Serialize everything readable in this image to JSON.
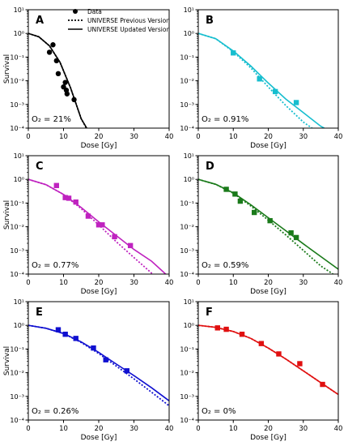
{
  "figure": {
    "legend": {
      "entries": [
        {
          "label": "Data",
          "style": "marker"
        },
        {
          "label": "UNIVERSE Previous Version",
          "style": "dotted"
        },
        {
          "label": "UNIVERSE Updated Version",
          "style": "solid"
        }
      ]
    }
  },
  "chart_data": [
    {
      "type": "scatter",
      "panel_letter": "A",
      "annotation": "O₂ = 21%",
      "color": "#000000",
      "marker": "circle",
      "xlabel": "Dose [Gy]",
      "ylabel": "Survival",
      "xlim": [
        0,
        40
      ],
      "ylim": [
        0.0001,
        10
      ],
      "yscale": "log",
      "x_ticks": [
        "0",
        "10",
        "20",
        "30",
        "40"
      ],
      "y_ticks": [
        "10⁻⁴",
        "10⁻³",
        "10⁻²",
        "10⁻¹",
        "10⁰",
        "10¹"
      ],
      "series": [
        {
          "name": "Data",
          "points": [
            [
              6.0,
              0.16
            ],
            [
              7.0,
              0.33
            ],
            [
              8.0,
              0.07
            ],
            [
              8.5,
              0.02
            ],
            [
              10.0,
              0.0055
            ],
            [
              10.5,
              0.0085
            ],
            [
              10.8,
              0.004
            ],
            [
              11.0,
              0.0028
            ],
            [
              13.0,
              0.0016
            ]
          ]
        },
        {
          "name": "UNIVERSE Previous Version",
          "points": [
            [
              0,
              1.0
            ],
            [
              3,
              0.72
            ],
            [
              6,
              0.3
            ],
            [
              9,
              0.06
            ],
            [
              12,
              0.005
            ],
            [
              15,
              0.00025
            ],
            [
              16.5,
              0.0001
            ]
          ]
        },
        {
          "name": "UNIVERSE Updated Version",
          "points": [
            [
              0,
              1.0
            ],
            [
              3,
              0.72
            ],
            [
              6,
              0.3
            ],
            [
              9,
              0.06
            ],
            [
              12,
              0.005
            ],
            [
              15,
              0.00025
            ],
            [
              16.6,
              0.0001
            ]
          ]
        }
      ]
    },
    {
      "type": "scatter",
      "panel_letter": "B",
      "annotation": "O₂ = 0.91%",
      "color": "#17becf",
      "marker": "square",
      "xlabel": "Dose [Gy]",
      "ylabel": "",
      "xlim": [
        0,
        40
      ],
      "ylim": [
        0.0001,
        10
      ],
      "yscale": "log",
      "x_ticks": [
        "0",
        "10",
        "20",
        "30",
        "40"
      ],
      "y_ticks": [
        "10⁻⁴",
        "10⁻³",
        "10⁻²",
        "10⁻¹",
        "10⁰",
        "10¹"
      ],
      "series": [
        {
          "name": "Data",
          "points": [
            [
              10.0,
              0.15
            ],
            [
              17.5,
              0.012
            ],
            [
              22.0,
              0.0035
            ],
            [
              28.0,
              0.0012
            ]
          ]
        },
        {
          "name": "UNIVERSE Previous Version",
          "points": [
            [
              0,
              1.0
            ],
            [
              5,
              0.6
            ],
            [
              10,
              0.17
            ],
            [
              15,
              0.035
            ],
            [
              20,
              0.0055
            ],
            [
              25,
              0.0009
            ],
            [
              30,
              0.00018
            ],
            [
              32.5,
              0.0001
            ]
          ]
        },
        {
          "name": "UNIVERSE Updated Version",
          "points": [
            [
              0,
              1.0
            ],
            [
              5,
              0.6
            ],
            [
              10,
              0.18
            ],
            [
              15,
              0.042
            ],
            [
              20,
              0.008
            ],
            [
              25,
              0.0017
            ],
            [
              30,
              0.00045
            ],
            [
              35,
              0.00012
            ],
            [
              36,
              0.0001
            ]
          ]
        }
      ]
    },
    {
      "type": "scatter",
      "panel_letter": "C",
      "annotation": "O₂ = 0.77%",
      "color": "#bf22bf",
      "marker": "square",
      "xlabel": "Dose [Gy]",
      "ylabel": "Survival",
      "xlim": [
        0,
        40
      ],
      "ylim": [
        0.0001,
        10
      ],
      "yscale": "log",
      "x_ticks": [
        "0",
        "10",
        "20",
        "30",
        "40"
      ],
      "y_ticks": [
        "10⁻⁴",
        "10⁻³",
        "10⁻²",
        "10⁻¹",
        "10⁰",
        "10¹"
      ],
      "series": [
        {
          "name": "Data",
          "points": [
            [
              8.0,
              0.55
            ],
            [
              10.5,
              0.17
            ],
            [
              11.5,
              0.16
            ],
            [
              13.5,
              0.11
            ],
            [
              17.0,
              0.028
            ],
            [
              20.0,
              0.012
            ],
            [
              21.0,
              0.012
            ],
            [
              24.5,
              0.0038
            ],
            [
              29.0,
              0.0016
            ]
          ]
        },
        {
          "name": "UNIVERSE Previous Version",
          "points": [
            [
              0,
              1.0
            ],
            [
              5,
              0.6
            ],
            [
              10,
              0.23
            ],
            [
              15,
              0.058
            ],
            [
              20,
              0.012
            ],
            [
              25,
              0.0023
            ],
            [
              30,
              0.0005
            ],
            [
              35,
              0.00011
            ],
            [
              35.5,
              0.0001
            ]
          ]
        },
        {
          "name": "UNIVERSE Updated Version",
          "points": [
            [
              0,
              1.0
            ],
            [
              5,
              0.6
            ],
            [
              10,
              0.23
            ],
            [
              15,
              0.065
            ],
            [
              20,
              0.016
            ],
            [
              25,
              0.0042
            ],
            [
              30,
              0.0011
            ],
            [
              35,
              0.00035
            ],
            [
              39,
              0.0001
            ]
          ]
        }
      ]
    },
    {
      "type": "scatter",
      "panel_letter": "D",
      "annotation": "O₂ = 0.59%",
      "color": "#1a7a1a",
      "marker": "square",
      "xlabel": "Dose [Gy]",
      "ylabel": "",
      "xlim": [
        0,
        40
      ],
      "ylim": [
        0.0001,
        10
      ],
      "yscale": "log",
      "x_ticks": [
        "0",
        "10",
        "20",
        "30",
        "40"
      ],
      "y_ticks": [
        "10⁻⁴",
        "10⁻³",
        "10⁻²",
        "10⁻¹",
        "10⁰",
        "10¹"
      ],
      "series": [
        {
          "name": "Data",
          "points": [
            [
              8.0,
              0.38
            ],
            [
              10.5,
              0.24
            ],
            [
              12.0,
              0.12
            ],
            [
              16.0,
              0.04
            ],
            [
              20.5,
              0.018
            ],
            [
              26.5,
              0.0055
            ],
            [
              28.0,
              0.0035
            ]
          ]
        },
        {
          "name": "UNIVERSE Previous Version",
          "points": [
            [
              0,
              1.0
            ],
            [
              5,
              0.62
            ],
            [
              10,
              0.26
            ],
            [
              15,
              0.075
            ],
            [
              20,
              0.019
            ],
            [
              25,
              0.0045
            ],
            [
              30,
              0.001
            ],
            [
              35,
              0.00022
            ],
            [
              38.5,
              0.0001
            ]
          ]
        },
        {
          "name": "UNIVERSE Updated Version",
          "points": [
            [
              0,
              1.0
            ],
            [
              5,
              0.62
            ],
            [
              10,
              0.27
            ],
            [
              15,
              0.085
            ],
            [
              20,
              0.024
            ],
            [
              25,
              0.0068
            ],
            [
              30,
              0.0019
            ],
            [
              35,
              0.00055
            ],
            [
              40,
              0.00016
            ]
          ]
        }
      ]
    },
    {
      "type": "scatter",
      "panel_letter": "E",
      "annotation": "O₂ = 0.26%",
      "color": "#1010d0",
      "marker": "square",
      "xlabel": "Dose [Gy]",
      "ylabel": "Survival",
      "xlim": [
        0,
        40
      ],
      "ylim": [
        0.0001,
        10
      ],
      "yscale": "log",
      "x_ticks": [
        "0",
        "10",
        "20",
        "30",
        "40"
      ],
      "y_ticks": [
        "10⁻⁴",
        "10⁻³",
        "10⁻²",
        "10⁻¹",
        "10⁰",
        "10¹"
      ],
      "series": [
        {
          "name": "Data",
          "points": [
            [
              8.5,
              0.65
            ],
            [
              10.5,
              0.42
            ],
            [
              13.5,
              0.28
            ],
            [
              18.5,
              0.11
            ],
            [
              22.0,
              0.035
            ],
            [
              28.0,
              0.012
            ]
          ]
        },
        {
          "name": "UNIVERSE Previous Version",
          "points": [
            [
              0,
              1.0
            ],
            [
              5,
              0.75
            ],
            [
              10,
              0.45
            ],
            [
              15,
              0.19
            ],
            [
              20,
              0.065
            ],
            [
              25,
              0.019
            ],
            [
              30,
              0.0055
            ],
            [
              35,
              0.0015
            ],
            [
              40,
              0.0004
            ]
          ]
        },
        {
          "name": "UNIVERSE Updated Version",
          "points": [
            [
              0,
              1.0
            ],
            [
              5,
              0.75
            ],
            [
              10,
              0.45
            ],
            [
              15,
              0.2
            ],
            [
              20,
              0.072
            ],
            [
              25,
              0.023
            ],
            [
              30,
              0.0075
            ],
            [
              35,
              0.0023
            ],
            [
              40,
              0.00065
            ]
          ]
        }
      ]
    },
    {
      "type": "scatter",
      "panel_letter": "F",
      "annotation": "O₂ = 0%",
      "color": "#e01010",
      "marker": "square",
      "xlabel": "Dose [Gy]",
      "ylabel": "",
      "xlim": [
        0,
        40
      ],
      "ylim": [
        0.0001,
        10
      ],
      "yscale": "log",
      "x_ticks": [
        "0",
        "10",
        "20",
        "30",
        "40"
      ],
      "y_ticks": [
        "10⁻⁴",
        "10⁻³",
        "10⁻²",
        "10⁻¹",
        "10⁰",
        "10¹"
      ],
      "series": [
        {
          "name": "Data",
          "points": [
            [
              5.5,
              0.78
            ],
            [
              8.0,
              0.68
            ],
            [
              12.5,
              0.42
            ],
            [
              18.0,
              0.17
            ],
            [
              23.0,
              0.062
            ],
            [
              29.0,
              0.024
            ],
            [
              35.5,
              0.0032
            ]
          ]
        },
        {
          "name": "UNIVERSE Previous Version",
          "points": [
            [
              0,
              1.0
            ],
            [
              5,
              0.82
            ],
            [
              10,
              0.55
            ],
            [
              15,
              0.28
            ],
            [
              20,
              0.11
            ],
            [
              25,
              0.038
            ],
            [
              30,
              0.012
            ],
            [
              35,
              0.0038
            ],
            [
              40,
              0.0012
            ]
          ]
        },
        {
          "name": "UNIVERSE Updated Version",
          "points": [
            [
              0,
              1.0
            ],
            [
              5,
              0.82
            ],
            [
              10,
              0.55
            ],
            [
              15,
              0.28
            ],
            [
              20,
              0.11
            ],
            [
              25,
              0.038
            ],
            [
              30,
              0.012
            ],
            [
              35,
              0.0038
            ],
            [
              40,
              0.0012
            ]
          ]
        }
      ]
    }
  ]
}
